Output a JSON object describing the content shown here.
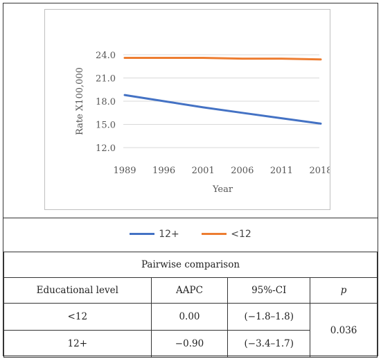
{
  "chart_data": {
    "type": "line",
    "x": [
      "1989",
      "1996",
      "2001",
      "2006",
      "2011",
      "2018"
    ],
    "series": [
      {
        "name": "12+",
        "color": "#4472C4",
        "values": [
          18.8,
          18.0,
          17.2,
          16.5,
          15.8,
          15.1
        ]
      },
      {
        "name": "<12",
        "color": "#ED7D31",
        "values": [
          23.6,
          23.6,
          23.6,
          23.5,
          23.5,
          23.4
        ]
      }
    ],
    "xlabel": "Year",
    "ylabel": "Rate X100,000",
    "yticks": [
      "12.0",
      "15.0",
      "18.0",
      "21.0",
      "24.0"
    ],
    "ylim": [
      12.0,
      24.0
    ],
    "grid": true,
    "legend_position": "bottom"
  },
  "table": {
    "title": "Pairwise comparison",
    "headers": {
      "level": "Educational level",
      "aapc": "AAPC",
      "ci": "95%-CI",
      "p": "p"
    },
    "rows": [
      {
        "level": "<12",
        "aapc": "0.00",
        "ci": "(−1.8–1.8)"
      },
      {
        "level": "12+",
        "aapc": "−0.90",
        "ci": "(−3.4–1.7)"
      }
    ],
    "p_value": "0.036"
  }
}
